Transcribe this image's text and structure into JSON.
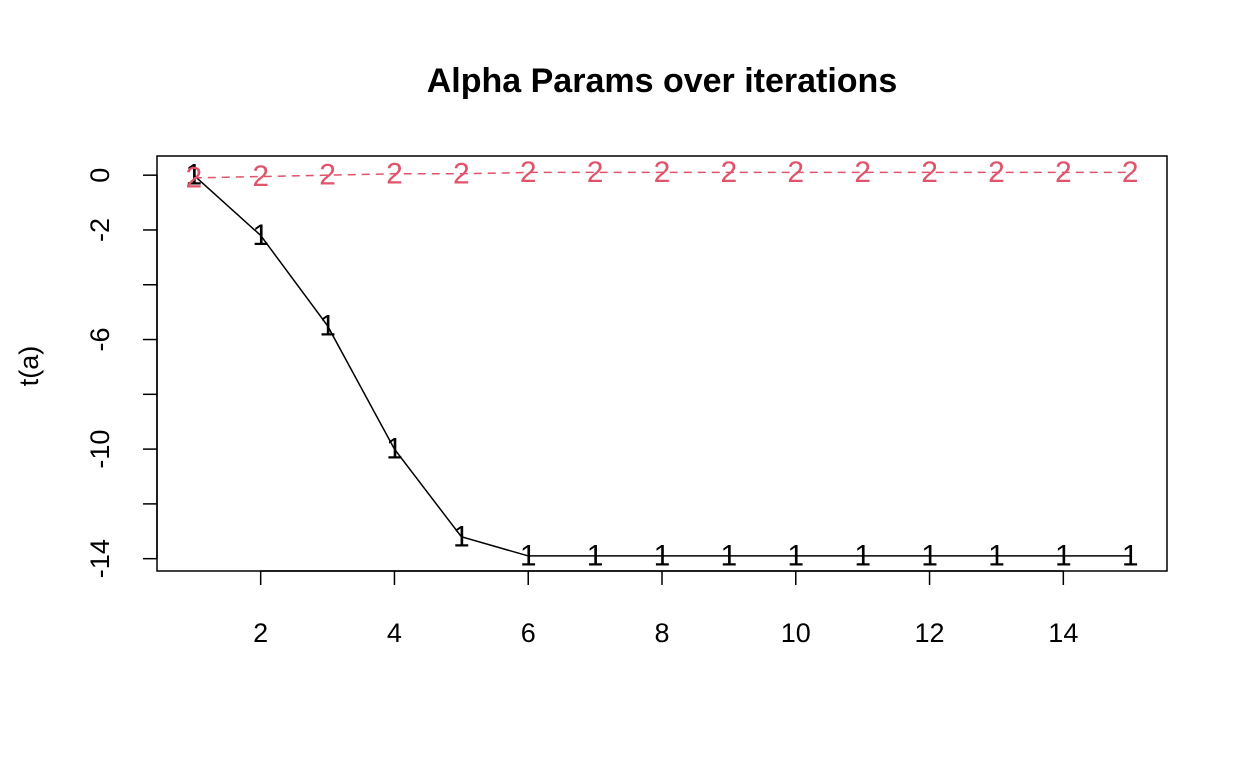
{
  "chart_data": {
    "type": "line",
    "title": "Alpha Params over iterations",
    "xlabel": "",
    "ylabel": "t(a)",
    "xlim": [
      0.45,
      15.55
    ],
    "ylim": [
      -14.45,
      0.7
    ],
    "x_ticks": [
      2,
      4,
      6,
      8,
      10,
      12,
      14
    ],
    "x_tick_labels": [
      "2",
      "4",
      "6",
      "8",
      "10",
      "12",
      "14"
    ],
    "y_ticks": [
      0,
      -2,
      -4,
      -6,
      -8,
      -10,
      -12,
      -14
    ],
    "y_tick_labels": [
      "0",
      "-2",
      "",
      "-6",
      "",
      "-10",
      "",
      "-14"
    ],
    "grid": false,
    "legend": "none",
    "x": [
      1,
      2,
      3,
      4,
      5,
      6,
      7,
      8,
      9,
      10,
      11,
      12,
      13,
      14,
      15
    ],
    "series": [
      {
        "marker": "1",
        "color": "#000000",
        "line": "solid",
        "values": [
          0.0,
          -2.2,
          -5.5,
          -10.0,
          -13.2,
          -13.9,
          -13.9,
          -13.9,
          -13.9,
          -13.9,
          -13.9,
          -13.9,
          -13.9,
          -13.9,
          -13.9
        ]
      },
      {
        "marker": "2",
        "color": "#DF536B",
        "line": "dashed",
        "values": [
          -0.1,
          -0.05,
          0.0,
          0.05,
          0.05,
          0.1,
          0.1,
          0.1,
          0.1,
          0.1,
          0.1,
          0.1,
          0.1,
          0.1,
          0.1
        ]
      }
    ]
  }
}
